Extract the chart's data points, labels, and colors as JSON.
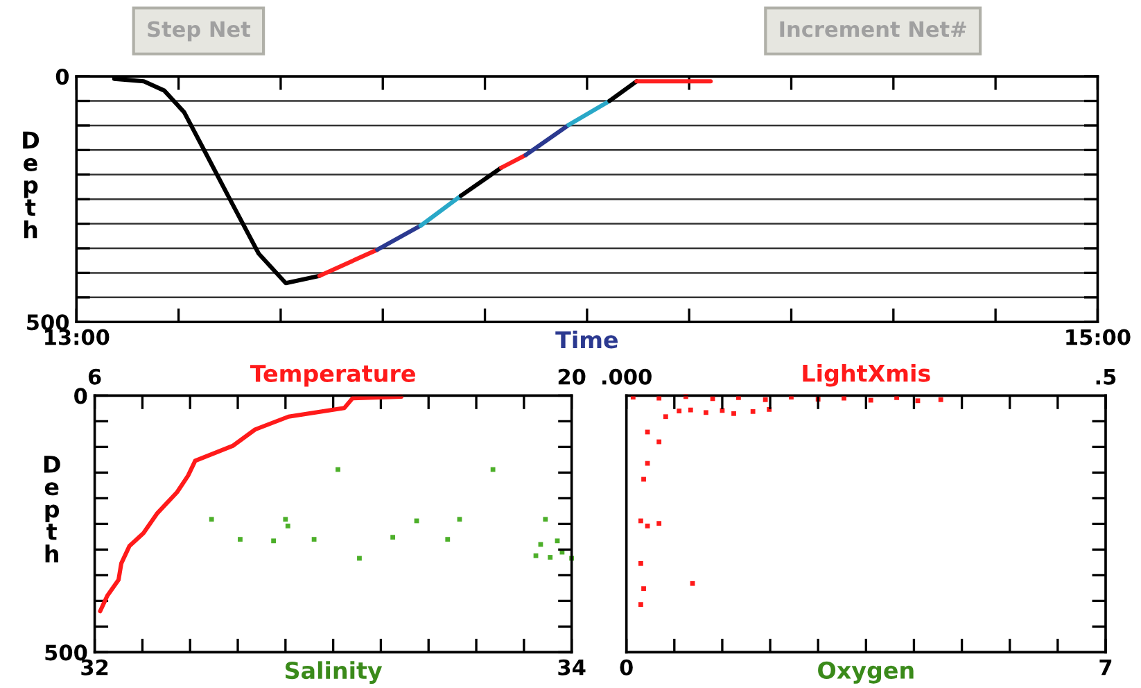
{
  "chart_data": [
    {
      "type": "line",
      "xlabel": "Time",
      "ylabel": "Depth",
      "annotations": [
        "Step Net",
        "Increment Net#"
      ],
      "xlim": [
        13,
        15
      ],
      "xticks": [
        {
          "value": 13,
          "label": "13:00"
        },
        {
          "value": 13.2,
          "label": null
        },
        {
          "value": 13.4,
          "label": null
        },
        {
          "value": 13.6,
          "label": null
        },
        {
          "value": 13.8,
          "label": null
        },
        {
          "value": 14,
          "label": null
        },
        {
          "value": 14.2,
          "label": null
        },
        {
          "value": 14.4,
          "label": null
        },
        {
          "value": 14.6,
          "label": null
        },
        {
          "value": 14.8,
          "label": null
        },
        {
          "value": 15,
          "label": "15:00"
        }
      ],
      "ylim": [
        500,
        0
      ],
      "yticks": [
        0,
        {
          "value": 50,
          "label": null
        },
        {
          "value": 100,
          "label": null
        },
        {
          "value": 150,
          "label": null
        },
        {
          "value": 200,
          "label": null
        },
        {
          "value": 250,
          "label": null
        },
        {
          "value": 300,
          "label": null
        },
        {
          "value": 350,
          "label": null
        },
        {
          "value": 400,
          "label": null
        },
        {
          "value": 450,
          "label": null
        },
        500
      ],
      "grid": "y",
      "series": [
        {
          "color": "#000000",
          "x": [
            13.074,
            13.132,
            13.172,
            13.211,
            13.251,
            13.304,
            13.357,
            13.41,
            13.476
          ],
          "values": [
            5,
            10,
            29,
            73,
            152,
            257,
            361,
            421,
            406
          ]
        },
        {
          "color": "#ff2020",
          "x": [
            13.476,
            13.589
          ],
          "values": [
            406,
            353
          ]
        },
        {
          "color": "#2b3990",
          "x": [
            13.589,
            13.674
          ],
          "values": [
            353,
            304
          ]
        },
        {
          "color": "#29a8c8",
          "x": [
            13.674,
            13.753
          ],
          "values": [
            304,
            243
          ]
        },
        {
          "color": "#000000",
          "x": [
            13.753,
            13.832
          ],
          "values": [
            243,
            186
          ]
        },
        {
          "color": "#ff2020",
          "x": [
            13.832,
            13.88
          ],
          "values": [
            186,
            160
          ]
        },
        {
          "color": "#2b3990",
          "x": [
            13.88,
            13.964
          ],
          "values": [
            160,
            99
          ]
        },
        {
          "color": "#29a8c8",
          "x": [
            13.964,
            14.044
          ],
          "values": [
            99,
            50
          ]
        },
        {
          "color": "#000000",
          "x": [
            14.044,
            14.097
          ],
          "values": [
            50,
            10
          ]
        },
        {
          "color": "#ff2020",
          "x": [
            14.097,
            14.242
          ],
          "values": [
            10,
            10
          ]
        }
      ]
    },
    {
      "type": "line",
      "xlabel": "Salinity",
      "x2label": "Temperature",
      "ylabel": "Depth",
      "xlim": [
        32,
        34
      ],
      "xticks": [
        32,
        {
          "value": 32.2,
          "label": null
        },
        {
          "value": 32.4,
          "label": null
        },
        {
          "value": 32.6,
          "label": null
        },
        {
          "value": 32.8,
          "label": null
        },
        {
          "value": 33,
          "label": null
        },
        {
          "value": 33.2,
          "label": null
        },
        {
          "value": 33.4,
          "label": null
        },
        {
          "value": 33.6,
          "label": null
        },
        {
          "value": 33.8,
          "label": null
        },
        34
      ],
      "x2lim": [
        6,
        20
      ],
      "x2ticks": [
        6,
        {
          "value": 7.4,
          "label": null
        },
        {
          "value": 8.8,
          "label": null
        },
        {
          "value": 10.2,
          "label": null
        },
        {
          "value": 11.6,
          "label": null
        },
        {
          "value": 13,
          "label": null
        },
        {
          "value": 14.4,
          "label": null
        },
        {
          "value": 15.8,
          "label": null
        },
        {
          "value": 17.2,
          "label": null
        },
        {
          "value": 18.6,
          "label": null
        },
        20
      ],
      "ylim": [
        500,
        0
      ],
      "yticks": [
        0,
        {
          "value": 50,
          "label": null
        },
        {
          "value": 100,
          "label": null
        },
        {
          "value": 150,
          "label": null
        },
        {
          "value": 200,
          "label": null
        },
        {
          "value": 250,
          "label": null
        },
        {
          "value": 300,
          "label": null
        },
        {
          "value": 350,
          "label": null
        },
        {
          "value": 400,
          "label": null
        },
        {
          "value": 450,
          "label": null
        },
        500
      ],
      "series": [
        {
          "type": "line",
          "axis": "x2",
          "color": "#ff1a1a",
          "x": [
            15.0,
            13.57,
            13.33,
            11.69,
            10.71,
            10.05,
            8.95,
            8.74,
            8.42,
            7.84,
            7.43,
            7.02,
            6.78,
            6.7,
            6.37,
            6.16
          ],
          "values": [
            2,
            5,
            24,
            41,
            66,
            98,
            127,
            156,
            188,
            229,
            268,
            293,
            327,
            359,
            390,
            420
          ]
        },
        {
          "type": "scatter",
          "marker": "square",
          "color": "#4caf29",
          "x": [
            33.02,
            33.67,
            32.49,
            32.61,
            32.75,
            32.8,
            32.81,
            32.92,
            33.11,
            33.25,
            33.35,
            33.48,
            33.53,
            33.89,
            33.87,
            33.85,
            33.91,
            33.94,
            33.96,
            34.0
          ],
          "values": [
            144,
            144,
            241,
            280,
            283,
            241,
            254,
            280,
            317,
            276,
            244,
            280,
            241,
            241,
            290,
            312,
            315,
            283,
            305,
            317
          ]
        }
      ]
    },
    {
      "type": "scatter",
      "xlabel": "Oxygen",
      "x2label": "LightXmis",
      "xlim": [
        0,
        7
      ],
      "xticks": [
        0,
        {
          "value": 0.7,
          "label": null
        },
        {
          "value": 1.4,
          "label": null
        },
        {
          "value": 2.1,
          "label": null
        },
        {
          "value": 2.8,
          "label": null
        },
        {
          "value": 3.5,
          "label": null
        },
        {
          "value": 4.2,
          "label": null
        },
        {
          "value": 4.9,
          "label": null
        },
        {
          "value": 5.6,
          "label": null
        },
        {
          "value": 6.3,
          "label": null
        },
        7
      ],
      "x2lim": [
        0,
        0.5
      ],
      "x2ticks": [
        {
          "value": 0,
          "label": ".000"
        },
        {
          "value": 0.05,
          "label": null
        },
        {
          "value": 0.1,
          "label": null
        },
        {
          "value": 0.15,
          "label": null
        },
        {
          "value": 0.2,
          "label": null
        },
        {
          "value": 0.25,
          "label": null
        },
        {
          "value": 0.3,
          "label": null
        },
        {
          "value": 0.35,
          "label": null
        },
        {
          "value": 0.4,
          "label": null
        },
        {
          "value": 0.45,
          "label": null
        },
        {
          "value": 0.5,
          "label": ".5"
        }
      ],
      "ylim": [
        500,
        0
      ],
      "yticks": [
        {
          "value": 50,
          "label": null
        },
        {
          "value": 100,
          "label": null
        },
        {
          "value": 150,
          "label": null
        },
        {
          "value": 200,
          "label": null
        },
        {
          "value": 250,
          "label": null
        },
        {
          "value": 300,
          "label": null
        },
        {
          "value": 350,
          "label": null
        },
        {
          "value": 400,
          "label": null
        },
        {
          "value": 450,
          "label": null
        }
      ],
      "tick_labels": "x",
      "series": [
        {
          "type": "scatter",
          "axis": "x2",
          "marker": "square",
          "color": "#ff1a1a",
          "x": [
            0.007,
            0.034,
            0.062,
            0.09,
            0.117,
            0.145,
            0.172,
            0.2,
            0.227,
            0.255,
            0.282,
            0.304,
            0.328,
            0.055,
            0.067,
            0.083,
            0.1,
            0.112,
            0.132,
            0.149,
            0.041,
            0.022,
            0.034,
            0.022,
            0.018,
            0.015,
            0.015,
            0.018,
            0.015,
            0.022,
            0.034,
            0.069
          ],
          "values": [
            3,
            5,
            2,
            6,
            4,
            8,
            3,
            7,
            5,
            9,
            4,
            10,
            8,
            30,
            28,
            33,
            29,
            35,
            31,
            27,
            41,
            71,
            90,
            132,
            163,
            244,
            327,
            376,
            407,
            254,
            249,
            366
          ]
        }
      ]
    }
  ]
}
